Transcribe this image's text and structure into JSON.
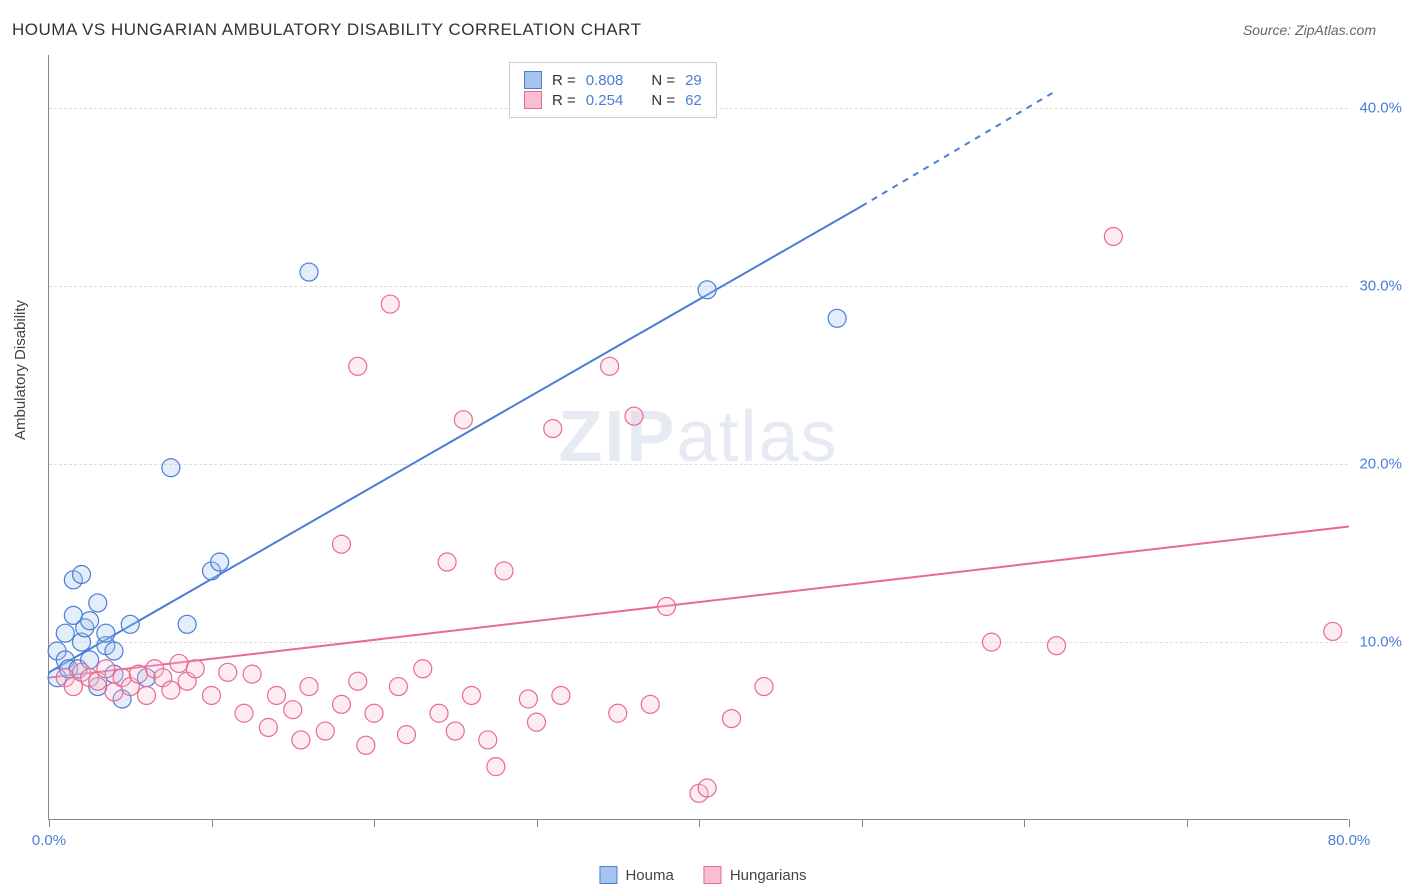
{
  "title": "HOUMA VS HUNGARIAN AMBULATORY DISABILITY CORRELATION CHART",
  "source_prefix": "Source: ",
  "source_name": "ZipAtlas.com",
  "y_axis_label": "Ambulatory Disability",
  "watermark": {
    "zip": "ZIP",
    "atlas": "atlas"
  },
  "chart": {
    "type": "scatter",
    "plot_bg": "#ffffff",
    "grid_color": "#dddddd",
    "axis_color": "#888888",
    "tick_label_color": "#4a7dd8",
    "xlim": [
      0,
      80
    ],
    "ylim": [
      0,
      43
    ],
    "y_ticks": [
      10,
      20,
      30,
      40
    ],
    "y_tick_labels": [
      "10.0%",
      "20.0%",
      "30.0%",
      "40.0%"
    ],
    "x_ticks": [
      0,
      10,
      20,
      30,
      40,
      50,
      60,
      70,
      80
    ],
    "x_tick_labels_shown": {
      "0": "0.0%",
      "80": "80.0%"
    },
    "marker_radius": 9,
    "marker_stroke_width": 1.2,
    "marker_fill_opacity": 0.3,
    "trend_line_width": 2
  },
  "series": [
    {
      "name": "Houma",
      "legend_label": "Houma",
      "color_stroke": "#4a7dd8",
      "color_fill": "#a7c4f0",
      "r": "0.808",
      "n": "29",
      "trend": {
        "x1": 0,
        "y1": 8.3,
        "x2": 50,
        "y2": 34.5,
        "dash_from_x": 50,
        "dash_to_x": 62,
        "dash_to_y": 41.0
      },
      "points": [
        [
          0.5,
          9.5
        ],
        [
          0.5,
          8.0
        ],
        [
          1.0,
          10.5
        ],
        [
          1.0,
          9.0
        ],
        [
          1.2,
          8.5
        ],
        [
          1.5,
          13.5
        ],
        [
          1.5,
          11.5
        ],
        [
          1.8,
          8.5
        ],
        [
          2.0,
          10.0
        ],
        [
          2.2,
          10.8
        ],
        [
          2.0,
          13.8
        ],
        [
          2.5,
          9.0
        ],
        [
          2.5,
          11.2
        ],
        [
          3.0,
          12.2
        ],
        [
          3.5,
          9.8
        ],
        [
          3.0,
          7.5
        ],
        [
          4.0,
          8.2
        ],
        [
          4.5,
          6.8
        ],
        [
          5.0,
          11.0
        ],
        [
          6.0,
          8.0
        ],
        [
          8.5,
          11.0
        ],
        [
          10.0,
          14.0
        ],
        [
          10.5,
          14.5
        ],
        [
          7.5,
          19.8
        ],
        [
          16.0,
          30.8
        ],
        [
          40.5,
          29.8
        ],
        [
          48.5,
          28.2
        ],
        [
          4.0,
          9.5
        ],
        [
          3.5,
          10.5
        ]
      ]
    },
    {
      "name": "Hungarians",
      "legend_label": "Hungarians",
      "color_stroke": "#e86b94",
      "color_fill": "#f7bfd1",
      "r": "0.254",
      "n": "62",
      "trend": {
        "x1": 0,
        "y1": 8.0,
        "x2": 80,
        "y2": 16.5
      },
      "points": [
        [
          1.0,
          8.0
        ],
        [
          1.5,
          7.5
        ],
        [
          2.0,
          8.3
        ],
        [
          2.5,
          8.0
        ],
        [
          3.0,
          7.8
        ],
        [
          3.5,
          8.5
        ],
        [
          4.0,
          7.2
        ],
        [
          4.5,
          8.0
        ],
        [
          5.0,
          7.5
        ],
        [
          5.5,
          8.2
        ],
        [
          6.0,
          7.0
        ],
        [
          6.5,
          8.5
        ],
        [
          7.0,
          8.0
        ],
        [
          7.5,
          7.3
        ],
        [
          8.0,
          8.8
        ],
        [
          8.5,
          7.8
        ],
        [
          9.0,
          8.5
        ],
        [
          10.0,
          7.0
        ],
        [
          11.0,
          8.3
        ],
        [
          12.0,
          6.0
        ],
        [
          12.5,
          8.2
        ],
        [
          13.5,
          5.2
        ],
        [
          14.0,
          7.0
        ],
        [
          15.0,
          6.2
        ],
        [
          15.5,
          4.5
        ],
        [
          16.0,
          7.5
        ],
        [
          17.0,
          5.0
        ],
        [
          18.0,
          6.5
        ],
        [
          18.0,
          15.5
        ],
        [
          19.0,
          7.8
        ],
        [
          19.5,
          4.2
        ],
        [
          20.0,
          6.0
        ],
        [
          21.0,
          29.0
        ],
        [
          21.5,
          7.5
        ],
        [
          22.0,
          4.8
        ],
        [
          23.0,
          8.5
        ],
        [
          24.0,
          6.0
        ],
        [
          24.5,
          14.5
        ],
        [
          25.0,
          5.0
        ],
        [
          25.5,
          22.5
        ],
        [
          26.0,
          7.0
        ],
        [
          27.0,
          4.5
        ],
        [
          27.5,
          3.0
        ],
        [
          28.0,
          14.0
        ],
        [
          29.5,
          6.8
        ],
        [
          30.0,
          5.5
        ],
        [
          31.0,
          22.0
        ],
        [
          31.5,
          7.0
        ],
        [
          34.5,
          25.5
        ],
        [
          35.0,
          6.0
        ],
        [
          36.0,
          22.7
        ],
        [
          37.0,
          6.5
        ],
        [
          38.0,
          12.0
        ],
        [
          40.0,
          1.5
        ],
        [
          40.5,
          1.8
        ],
        [
          42.0,
          5.7
        ],
        [
          44.0,
          7.5
        ],
        [
          58.0,
          10.0
        ],
        [
          62.0,
          9.8
        ],
        [
          65.5,
          32.8
        ],
        [
          19.0,
          25.5
        ],
        [
          79.0,
          10.6
        ]
      ]
    }
  ],
  "legend_top": {
    "r_label": "R =",
    "n_label": "N ="
  },
  "colors": {
    "blue_stroke": "#4a7dd8",
    "blue_fill": "#a7c4f0",
    "pink_stroke": "#e86b94",
    "pink_fill": "#f7bfd1"
  }
}
